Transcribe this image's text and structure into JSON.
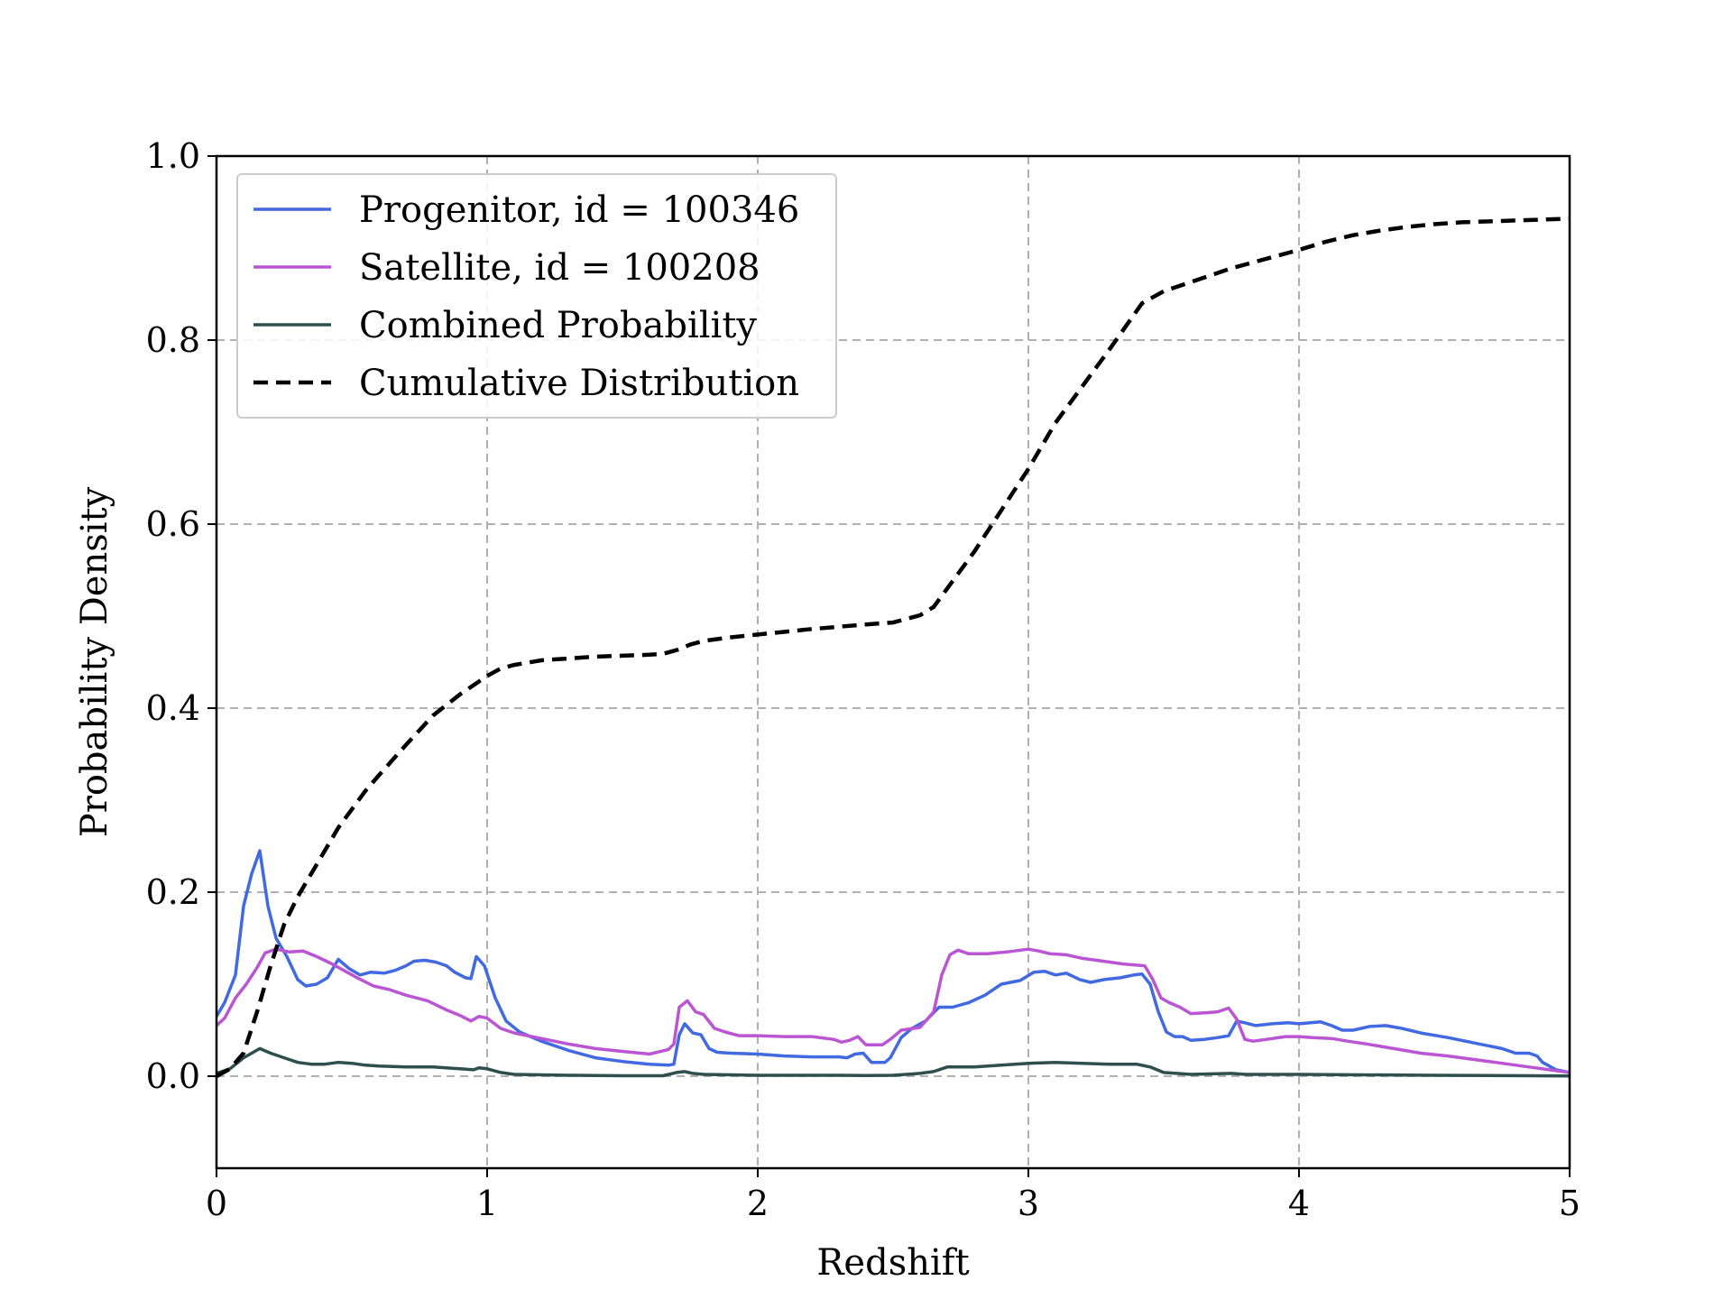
{
  "chart_data": {
    "type": "line",
    "xlabel": "Redshift",
    "ylabel": "Probability Density",
    "xlim": [
      0,
      5
    ],
    "ylim": [
      -0.1,
      1.0
    ],
    "x_ticks": [
      0,
      1,
      2,
      3,
      4,
      5
    ],
    "x_tick_labels": [
      "0",
      "1",
      "2",
      "3",
      "4",
      "5"
    ],
    "y_ticks": [
      0.0,
      0.2,
      0.4,
      0.6,
      0.8,
      1.0
    ],
    "y_tick_labels": [
      "0.0",
      "0.2",
      "0.4",
      "0.6",
      "0.8",
      "1.0"
    ],
    "grid": true,
    "legend_position": "top-left",
    "series": [
      {
        "name": "Progenitor, id = 100346",
        "color": "#4169E1",
        "dash": "solid",
        "points": [
          [
            0,
            0.065
          ],
          [
            0.03,
            0.08
          ],
          [
            0.07,
            0.11
          ],
          [
            0.1,
            0.185
          ],
          [
            0.13,
            0.22
          ],
          [
            0.16,
            0.245
          ],
          [
            0.19,
            0.185
          ],
          [
            0.22,
            0.15
          ],
          [
            0.26,
            0.13
          ],
          [
            0.3,
            0.105
          ],
          [
            0.33,
            0.098
          ],
          [
            0.37,
            0.1
          ],
          [
            0.41,
            0.107
          ],
          [
            0.45,
            0.127
          ],
          [
            0.49,
            0.117
          ],
          [
            0.53,
            0.11
          ],
          [
            0.57,
            0.113
          ],
          [
            0.62,
            0.112
          ],
          [
            0.66,
            0.115
          ],
          [
            0.7,
            0.12
          ],
          [
            0.73,
            0.125
          ],
          [
            0.77,
            0.126
          ],
          [
            0.81,
            0.124
          ],
          [
            0.85,
            0.12
          ],
          [
            0.88,
            0.113
          ],
          [
            0.92,
            0.107
          ],
          [
            0.94,
            0.106
          ],
          [
            0.96,
            0.13
          ],
          [
            0.99,
            0.12
          ],
          [
            1.03,
            0.085
          ],
          [
            1.07,
            0.06
          ],
          [
            1.12,
            0.048
          ],
          [
            1.2,
            0.038
          ],
          [
            1.3,
            0.028
          ],
          [
            1.4,
            0.02
          ],
          [
            1.5,
            0.016
          ],
          [
            1.6,
            0.013
          ],
          [
            1.67,
            0.012
          ],
          [
            1.69,
            0.013
          ],
          [
            1.71,
            0.045
          ],
          [
            1.73,
            0.057
          ],
          [
            1.76,
            0.047
          ],
          [
            1.79,
            0.045
          ],
          [
            1.82,
            0.03
          ],
          [
            1.85,
            0.026
          ],
          [
            1.9,
            0.025
          ],
          [
            2.0,
            0.024
          ],
          [
            2.1,
            0.022
          ],
          [
            2.2,
            0.021
          ],
          [
            2.3,
            0.021
          ],
          [
            2.33,
            0.02
          ],
          [
            2.36,
            0.024
          ],
          [
            2.39,
            0.025
          ],
          [
            2.42,
            0.015
          ],
          [
            2.47,
            0.015
          ],
          [
            2.49,
            0.02
          ],
          [
            2.53,
            0.042
          ],
          [
            2.57,
            0.052
          ],
          [
            2.62,
            0.06
          ],
          [
            2.67,
            0.075
          ],
          [
            2.72,
            0.075
          ],
          [
            2.78,
            0.08
          ],
          [
            2.84,
            0.088
          ],
          [
            2.9,
            0.1
          ],
          [
            2.97,
            0.104
          ],
          [
            3.02,
            0.113
          ],
          [
            3.06,
            0.114
          ],
          [
            3.1,
            0.11
          ],
          [
            3.14,
            0.112
          ],
          [
            3.19,
            0.105
          ],
          [
            3.23,
            0.102
          ],
          [
            3.28,
            0.105
          ],
          [
            3.34,
            0.107
          ],
          [
            3.39,
            0.11
          ],
          [
            3.42,
            0.111
          ],
          [
            3.45,
            0.1
          ],
          [
            3.48,
            0.07
          ],
          [
            3.51,
            0.048
          ],
          [
            3.54,
            0.043
          ],
          [
            3.57,
            0.043
          ],
          [
            3.6,
            0.039
          ],
          [
            3.65,
            0.04
          ],
          [
            3.7,
            0.042
          ],
          [
            3.74,
            0.044
          ],
          [
            3.77,
            0.06
          ],
          [
            3.8,
            0.058
          ],
          [
            3.84,
            0.055
          ],
          [
            3.9,
            0.057
          ],
          [
            3.96,
            0.058
          ],
          [
            4.0,
            0.057
          ],
          [
            4.08,
            0.059
          ],
          [
            4.12,
            0.055
          ],
          [
            4.16,
            0.05
          ],
          [
            4.2,
            0.05
          ],
          [
            4.26,
            0.054
          ],
          [
            4.32,
            0.055
          ],
          [
            4.38,
            0.052
          ],
          [
            4.45,
            0.047
          ],
          [
            4.55,
            0.042
          ],
          [
            4.65,
            0.036
          ],
          [
            4.75,
            0.03
          ],
          [
            4.8,
            0.025
          ],
          [
            4.85,
            0.025
          ],
          [
            4.88,
            0.022
          ],
          [
            4.9,
            0.015
          ],
          [
            4.95,
            0.007
          ],
          [
            5.0,
            0.004
          ]
        ]
      },
      {
        "name": "Satellite, id = 100208",
        "color": "#BA55D3",
        "dash": "solid",
        "points": [
          [
            0,
            0.055
          ],
          [
            0.03,
            0.063
          ],
          [
            0.07,
            0.085
          ],
          [
            0.11,
            0.1
          ],
          [
            0.15,
            0.118
          ],
          [
            0.18,
            0.134
          ],
          [
            0.22,
            0.138
          ],
          [
            0.27,
            0.135
          ],
          [
            0.32,
            0.136
          ],
          [
            0.37,
            0.13
          ],
          [
            0.42,
            0.123
          ],
          [
            0.47,
            0.115
          ],
          [
            0.52,
            0.107
          ],
          [
            0.58,
            0.098
          ],
          [
            0.64,
            0.094
          ],
          [
            0.7,
            0.088
          ],
          [
            0.78,
            0.082
          ],
          [
            0.85,
            0.072
          ],
          [
            0.9,
            0.066
          ],
          [
            0.94,
            0.06
          ],
          [
            0.97,
            0.065
          ],
          [
            1.0,
            0.063
          ],
          [
            1.05,
            0.052
          ],
          [
            1.1,
            0.047
          ],
          [
            1.2,
            0.041
          ],
          [
            1.3,
            0.035
          ],
          [
            1.4,
            0.03
          ],
          [
            1.5,
            0.027
          ],
          [
            1.6,
            0.024
          ],
          [
            1.67,
            0.029
          ],
          [
            1.69,
            0.035
          ],
          [
            1.71,
            0.075
          ],
          [
            1.74,
            0.082
          ],
          [
            1.77,
            0.07
          ],
          [
            1.8,
            0.067
          ],
          [
            1.84,
            0.052
          ],
          [
            1.88,
            0.048
          ],
          [
            1.93,
            0.044
          ],
          [
            2.0,
            0.044
          ],
          [
            2.1,
            0.043
          ],
          [
            2.2,
            0.043
          ],
          [
            2.28,
            0.04
          ],
          [
            2.31,
            0.037
          ],
          [
            2.34,
            0.039
          ],
          [
            2.37,
            0.043
          ],
          [
            2.4,
            0.034
          ],
          [
            2.46,
            0.034
          ],
          [
            2.49,
            0.04
          ],
          [
            2.53,
            0.05
          ],
          [
            2.6,
            0.053
          ],
          [
            2.65,
            0.07
          ],
          [
            2.68,
            0.11
          ],
          [
            2.71,
            0.132
          ],
          [
            2.74,
            0.137
          ],
          [
            2.78,
            0.133
          ],
          [
            2.85,
            0.133
          ],
          [
            2.92,
            0.135
          ],
          [
            3.0,
            0.138
          ],
          [
            3.04,
            0.136
          ],
          [
            3.08,
            0.133
          ],
          [
            3.14,
            0.132
          ],
          [
            3.2,
            0.128
          ],
          [
            3.3,
            0.124
          ],
          [
            3.35,
            0.122
          ],
          [
            3.43,
            0.12
          ],
          [
            3.46,
            0.105
          ],
          [
            3.49,
            0.085
          ],
          [
            3.52,
            0.08
          ],
          [
            3.56,
            0.075
          ],
          [
            3.6,
            0.068
          ],
          [
            3.66,
            0.069
          ],
          [
            3.7,
            0.07
          ],
          [
            3.74,
            0.074
          ],
          [
            3.77,
            0.062
          ],
          [
            3.8,
            0.04
          ],
          [
            3.83,
            0.038
          ],
          [
            3.88,
            0.04
          ],
          [
            3.95,
            0.043
          ],
          [
            4.0,
            0.043
          ],
          [
            4.05,
            0.042
          ],
          [
            4.12,
            0.041
          ],
          [
            4.18,
            0.038
          ],
          [
            4.25,
            0.035
          ],
          [
            4.35,
            0.03
          ],
          [
            4.45,
            0.025
          ],
          [
            4.55,
            0.022
          ],
          [
            4.65,
            0.018
          ],
          [
            4.75,
            0.014
          ],
          [
            4.85,
            0.01
          ],
          [
            4.95,
            0.006
          ],
          [
            5.0,
            0.004
          ]
        ]
      },
      {
        "name": "Combined Probability",
        "color": "#2F4F4F",
        "dash": "solid",
        "points": [
          [
            0,
            0.003
          ],
          [
            0.05,
            0.008
          ],
          [
            0.1,
            0.02
          ],
          [
            0.16,
            0.03
          ],
          [
            0.2,
            0.025
          ],
          [
            0.25,
            0.02
          ],
          [
            0.3,
            0.015
          ],
          [
            0.35,
            0.013
          ],
          [
            0.4,
            0.013
          ],
          [
            0.45,
            0.015
          ],
          [
            0.5,
            0.014
          ],
          [
            0.55,
            0.012
          ],
          [
            0.6,
            0.011
          ],
          [
            0.7,
            0.01
          ],
          [
            0.8,
            0.01
          ],
          [
            0.9,
            0.008
          ],
          [
            0.95,
            0.007
          ],
          [
            0.97,
            0.009
          ],
          [
            1.0,
            0.008
          ],
          [
            1.05,
            0.004
          ],
          [
            1.1,
            0.002
          ],
          [
            1.3,
            0.001
          ],
          [
            1.5,
            0.0005
          ],
          [
            1.65,
            0.0005
          ],
          [
            1.7,
            0.004
          ],
          [
            1.73,
            0.005
          ],
          [
            1.76,
            0.003
          ],
          [
            1.8,
            0.002
          ],
          [
            2.0,
            0.001
          ],
          [
            2.3,
            0.001
          ],
          [
            2.4,
            0.0008
          ],
          [
            2.5,
            0.001
          ],
          [
            2.6,
            0.003
          ],
          [
            2.65,
            0.005
          ],
          [
            2.7,
            0.01
          ],
          [
            2.8,
            0.01
          ],
          [
            2.9,
            0.012
          ],
          [
            3.0,
            0.014
          ],
          [
            3.1,
            0.015
          ],
          [
            3.2,
            0.014
          ],
          [
            3.3,
            0.013
          ],
          [
            3.4,
            0.013
          ],
          [
            3.45,
            0.01
          ],
          [
            3.5,
            0.004
          ],
          [
            3.6,
            0.002
          ],
          [
            3.75,
            0.003
          ],
          [
            3.8,
            0.002
          ],
          [
            4.0,
            0.002
          ],
          [
            4.5,
            0.001
          ],
          [
            5.0,
            0.0003
          ]
        ]
      },
      {
        "name": "Cumulative Distribution",
        "color": "#000000",
        "dash": "dashed",
        "points": [
          [
            0,
            0.0
          ],
          [
            0.05,
            0.008
          ],
          [
            0.1,
            0.025
          ],
          [
            0.15,
            0.07
          ],
          [
            0.2,
            0.12
          ],
          [
            0.25,
            0.165
          ],
          [
            0.3,
            0.195
          ],
          [
            0.35,
            0.22
          ],
          [
            0.4,
            0.245
          ],
          [
            0.45,
            0.27
          ],
          [
            0.5,
            0.29
          ],
          [
            0.55,
            0.31
          ],
          [
            0.6,
            0.327
          ],
          [
            0.7,
            0.36
          ],
          [
            0.8,
            0.392
          ],
          [
            0.9,
            0.415
          ],
          [
            1.0,
            0.435
          ],
          [
            1.05,
            0.443
          ],
          [
            1.1,
            0.447
          ],
          [
            1.2,
            0.452
          ],
          [
            1.4,
            0.456
          ],
          [
            1.6,
            0.458
          ],
          [
            1.65,
            0.459
          ],
          [
            1.7,
            0.463
          ],
          [
            1.75,
            0.469
          ],
          [
            1.8,
            0.473
          ],
          [
            1.9,
            0.477
          ],
          [
            2.0,
            0.48
          ],
          [
            2.2,
            0.486
          ],
          [
            2.4,
            0.491
          ],
          [
            2.5,
            0.493
          ],
          [
            2.6,
            0.501
          ],
          [
            2.65,
            0.51
          ],
          [
            2.7,
            0.53
          ],
          [
            2.8,
            0.57
          ],
          [
            2.9,
            0.615
          ],
          [
            3.0,
            0.66
          ],
          [
            3.1,
            0.71
          ],
          [
            3.2,
            0.75
          ],
          [
            3.3,
            0.79
          ],
          [
            3.42,
            0.84
          ],
          [
            3.5,
            0.853
          ],
          [
            3.6,
            0.863
          ],
          [
            3.75,
            0.878
          ],
          [
            3.9,
            0.89
          ],
          [
            4.0,
            0.898
          ],
          [
            4.1,
            0.907
          ],
          [
            4.2,
            0.914
          ],
          [
            4.3,
            0.919
          ],
          [
            4.4,
            0.923
          ],
          [
            4.5,
            0.926
          ],
          [
            4.6,
            0.928
          ],
          [
            4.8,
            0.93
          ],
          [
            5.0,
            0.932
          ]
        ]
      }
    ]
  }
}
